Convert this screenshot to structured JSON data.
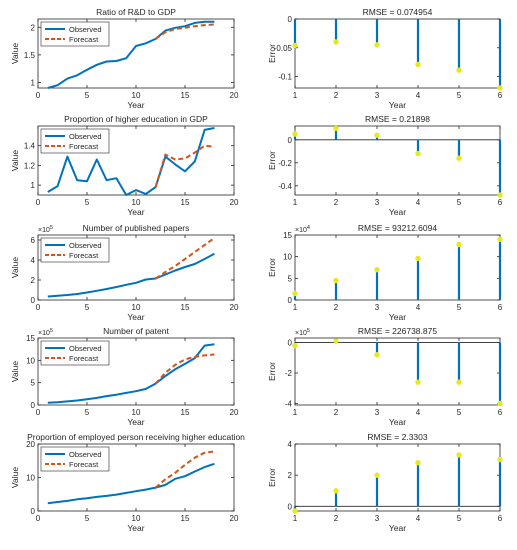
{
  "chart_data": [
    {
      "type": "line",
      "title": "Ratio of R&D to GDP",
      "xlabel": "Year",
      "ylabel": "Value",
      "xlim": [
        0,
        20
      ],
      "ylim": [
        0.9,
        2.15
      ],
      "xticks": [
        "0",
        "5",
        "10",
        "15",
        "20"
      ],
      "yticks": [
        "1",
        "1.5",
        "2"
      ],
      "ytick_values": [
        1,
        1.5,
        2
      ],
      "exponent": "",
      "legend": "top-left",
      "series": [
        {
          "name": "Observed",
          "color": "#0072BD",
          "style": "solid",
          "x": [
            1,
            2,
            3,
            4,
            5,
            6,
            7,
            8,
            9,
            10,
            11,
            12,
            13,
            14,
            15,
            16,
            17,
            18
          ],
          "y": [
            0.9,
            0.95,
            1.07,
            1.13,
            1.23,
            1.32,
            1.38,
            1.39,
            1.44,
            1.66,
            1.71,
            1.79,
            1.94,
            1.99,
            2.02,
            2.08,
            2.1,
            2.1
          ]
        },
        {
          "name": "Forecast",
          "color": "#D95319",
          "style": "dashed",
          "x": [
            12,
            13,
            14,
            15,
            16,
            17,
            18
          ],
          "y": [
            1.79,
            1.91,
            1.97,
            1.99,
            2.02,
            2.04,
            2.05
          ]
        }
      ]
    },
    {
      "type": "line",
      "title": "Proportion of higher education in GDP",
      "xlabel": "Year",
      "ylabel": "Value",
      "xlim": [
        0,
        20
      ],
      "ylim": [
        0.9,
        1.6
      ],
      "xticks": [
        "0",
        "5",
        "10",
        "15",
        "20"
      ],
      "yticks": [
        "1",
        "1.2",
        "1.4"
      ],
      "ytick_values": [
        1,
        1.2,
        1.4
      ],
      "exponent": "",
      "legend": "top-left",
      "series": [
        {
          "name": "Observed",
          "color": "#0072BD",
          "style": "solid",
          "x": [
            1,
            2,
            3,
            4,
            5,
            6,
            7,
            8,
            9,
            10,
            11,
            12,
            13,
            14,
            15,
            16,
            17,
            18
          ],
          "y": [
            0.93,
            0.99,
            1.29,
            1.05,
            1.04,
            1.26,
            1.05,
            1.07,
            0.9,
            0.95,
            0.91,
            0.98,
            1.29,
            1.21,
            1.14,
            1.24,
            1.56,
            1.58
          ]
        },
        {
          "name": "Forecast",
          "color": "#D95319",
          "style": "dashed",
          "x": [
            12,
            13,
            14,
            15,
            16,
            17,
            18
          ],
          "y": [
            0.98,
            1.31,
            1.26,
            1.27,
            1.33,
            1.4,
            1.39
          ]
        }
      ]
    },
    {
      "type": "line",
      "title": "Number of published papers",
      "xlabel": "Year",
      "ylabel": "Value",
      "xlim": [
        0,
        20
      ],
      "ylim": [
        0,
        6.5
      ],
      "xticks": [
        "0",
        "5",
        "10",
        "15",
        "20"
      ],
      "yticks": [
        "0",
        "2",
        "4",
        "6"
      ],
      "ytick_values": [
        0,
        2,
        4,
        6
      ],
      "exponent": "5",
      "legend": "top-left",
      "series": [
        {
          "name": "Observed",
          "color": "#0072BD",
          "style": "solid",
          "x": [
            1,
            2,
            3,
            4,
            5,
            6,
            7,
            8,
            9,
            10,
            11,
            12,
            13,
            14,
            15,
            16,
            17,
            18
          ],
          "y": [
            0.35,
            0.42,
            0.5,
            0.6,
            0.75,
            0.92,
            1.1,
            1.3,
            1.52,
            1.72,
            2.05,
            2.15,
            2.55,
            2.95,
            3.3,
            3.6,
            4.1,
            4.62
          ]
        },
        {
          "name": "Forecast",
          "color": "#D95319",
          "style": "dashed",
          "x": [
            12,
            13,
            14,
            15,
            16,
            17,
            18
          ],
          "y": [
            2.15,
            2.8,
            3.4,
            4.1,
            4.8,
            5.5,
            6.2
          ]
        }
      ]
    },
    {
      "type": "line",
      "title": "Number of patent",
      "xlabel": "Year",
      "ylabel": "Value",
      "xlim": [
        0,
        20
      ],
      "ylim": [
        0,
        15
      ],
      "xticks": [
        "0",
        "5",
        "10",
        "15",
        "20"
      ],
      "yticks": [
        "0",
        "5",
        "10",
        "15"
      ],
      "ytick_values": [
        0,
        5,
        10,
        15
      ],
      "exponent": "5",
      "legend": "top-left",
      "series": [
        {
          "name": "Observed",
          "color": "#0072BD",
          "style": "solid",
          "x": [
            1,
            2,
            3,
            4,
            5,
            6,
            7,
            8,
            9,
            10,
            11,
            12,
            13,
            14,
            15,
            16,
            17,
            18
          ],
          "y": [
            0.5,
            0.6,
            0.8,
            1.0,
            1.3,
            1.6,
            2.0,
            2.3,
            2.7,
            3.1,
            3.6,
            4.8,
            6.5,
            8.0,
            9.2,
            10.5,
            13.3,
            13.6
          ]
        },
        {
          "name": "Forecast",
          "color": "#D95319",
          "style": "dashed",
          "x": [
            12,
            13,
            14,
            15,
            16,
            17,
            18
          ],
          "y": [
            4.8,
            7.2,
            9.0,
            10.2,
            10.8,
            11.1,
            11.3
          ]
        }
      ]
    },
    {
      "type": "line",
      "title": "Proportion of employed person receiving higher education",
      "xlabel": "Year",
      "ylabel": "Value",
      "xlim": [
        0,
        20
      ],
      "ylim": [
        0,
        20
      ],
      "xticks": [
        "0",
        "5",
        "10",
        "15",
        "20"
      ],
      "yticks": [
        "0",
        "10",
        "20"
      ],
      "ytick_values": [
        0,
        10,
        20
      ],
      "exponent": "",
      "legend": "top-left",
      "series": [
        {
          "name": "Observed",
          "color": "#0072BD",
          "style": "solid",
          "x": [
            1,
            2,
            3,
            4,
            5,
            6,
            7,
            8,
            9,
            10,
            11,
            12,
            13,
            14,
            15,
            16,
            17,
            18
          ],
          "y": [
            2.3,
            2.7,
            3.0,
            3.5,
            3.8,
            4.2,
            4.5,
            4.9,
            5.4,
            5.9,
            6.4,
            7.0,
            7.8,
            9.6,
            10.4,
            11.8,
            13.1,
            14.1
          ]
        },
        {
          "name": "Forecast",
          "color": "#D95319",
          "style": "dashed",
          "x": [
            12,
            13,
            14,
            15,
            16,
            17,
            18
          ],
          "y": [
            7.0,
            9.5,
            11.4,
            13.8,
            15.9,
            17.4,
            17.8
          ]
        }
      ]
    },
    {
      "type": "stem",
      "title": "RMSE = 0.074954",
      "xlabel": "Year",
      "ylabel": "Error",
      "xlim": [
        1,
        6
      ],
      "ylim": [
        -0.12,
        0
      ],
      "xticks": [
        "1",
        "2",
        "3",
        "4",
        "5",
        "6"
      ],
      "yticks": [
        "0",
        "-0.05",
        "-0.1"
      ],
      "ytick_values": [
        0,
        -0.05,
        -0.1
      ],
      "exponent": "",
      "stem_color": "#0072BD",
      "marker_color": "#E8E81F",
      "x": [
        1,
        2,
        3,
        4,
        5,
        6
      ],
      "y": [
        -0.046,
        -0.04,
        -0.045,
        -0.079,
        -0.089,
        -0.12
      ]
    },
    {
      "type": "stem",
      "title": "RMSE = 0.21898",
      "xlabel": "Year",
      "ylabel": "Error",
      "xlim": [
        1,
        6
      ],
      "ylim": [
        -0.48,
        0.12
      ],
      "xticks": [
        "1",
        "2",
        "3",
        "4",
        "5",
        "6"
      ],
      "yticks": [
        "0",
        "-0.2",
        "-0.4"
      ],
      "ytick_values": [
        0,
        -0.2,
        -0.4
      ],
      "exponent": "",
      "stem_color": "#0072BD",
      "marker_color": "#E8E81F",
      "x": [
        1,
        2,
        3,
        4,
        5,
        6
      ],
      "y": [
        0.05,
        0.1,
        0.04,
        -0.12,
        -0.16,
        -0.48
      ]
    },
    {
      "type": "stem",
      "title": "RMSE = 93212.6094",
      "xlabel": "Year",
      "ylabel": "Error",
      "xlim": [
        1,
        6
      ],
      "ylim": [
        0,
        15
      ],
      "xticks": [
        "1",
        "2",
        "3",
        "4",
        "5",
        "6"
      ],
      "yticks": [
        "0",
        "5",
        "10",
        "15"
      ],
      "ytick_values": [
        0,
        5,
        10,
        15
      ],
      "exponent": "4",
      "stem_color": "#0072BD",
      "marker_color": "#E8E81F",
      "x": [
        1,
        2,
        3,
        4,
        5,
        6
      ],
      "y": [
        1.5,
        4.5,
        7.0,
        9.6,
        12.8,
        14.0
      ]
    },
    {
      "type": "stem",
      "title": "RMSE = 226738.875",
      "xlabel": "Year",
      "ylabel": "Error",
      "xlim": [
        1,
        6
      ],
      "ylim": [
        -4.1,
        0.3
      ],
      "xticks": [
        "1",
        "2",
        "3",
        "4",
        "5",
        "6"
      ],
      "yticks": [
        "0",
        "-2",
        "-4"
      ],
      "ytick_values": [
        0,
        -2,
        -4
      ],
      "exponent": "5",
      "stem_color": "#0072BD",
      "marker_color": "#E8E81F",
      "x": [
        1,
        2,
        3,
        4,
        5,
        6
      ],
      "y": [
        -0.2,
        0.1,
        -0.8,
        -2.6,
        -2.6,
        -4.0
      ]
    },
    {
      "type": "stem",
      "title": "RMSE = 2.3303",
      "xlabel": "Year",
      "ylabel": "Error",
      "xlim": [
        1,
        6
      ],
      "ylim": [
        -0.3,
        4
      ],
      "xticks": [
        "1",
        "2",
        "3",
        "4",
        "5",
        "6"
      ],
      "yticks": [
        "0",
        "2",
        "4"
      ],
      "ytick_values": [
        0,
        2,
        4
      ],
      "exponent": "",
      "stem_color": "#0072BD",
      "marker_color": "#E8E81F",
      "x": [
        1,
        2,
        3,
        4,
        5,
        6
      ],
      "y": [
        -0.3,
        1.0,
        2.0,
        2.8,
        3.3,
        3.0
      ]
    }
  ]
}
